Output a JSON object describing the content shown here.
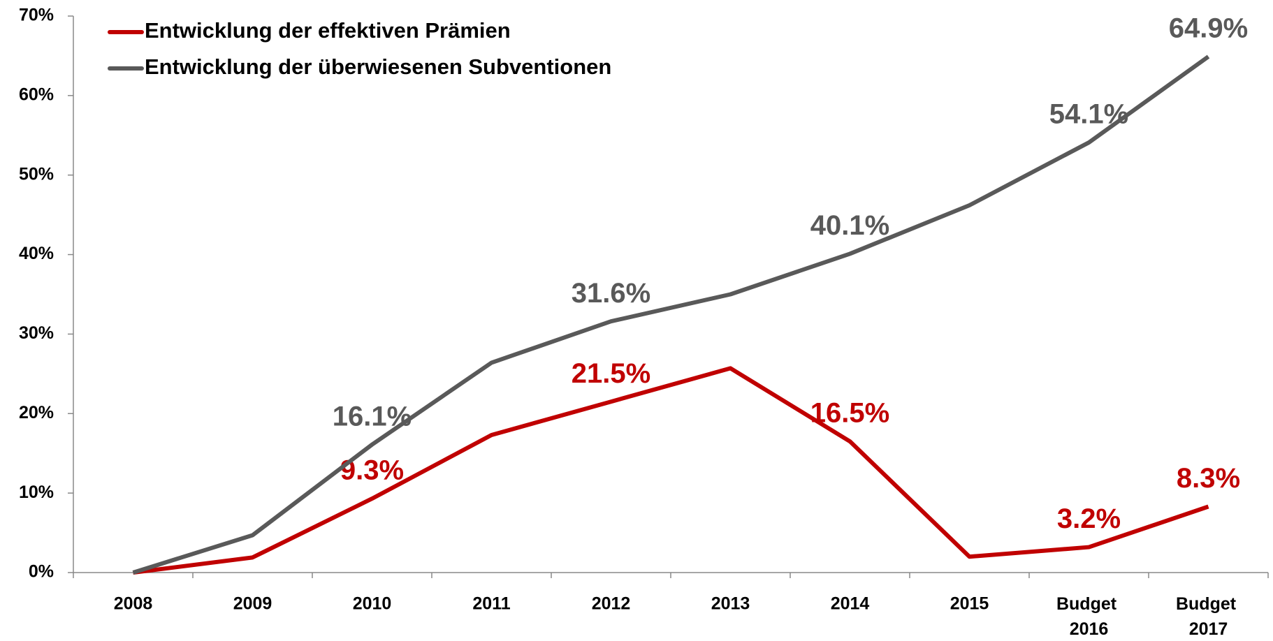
{
  "chart_data": {
    "type": "line",
    "categories": [
      "2008",
      "2009",
      "2010",
      "2011",
      "2012",
      "2013",
      "2014",
      "2015",
      "Budget 2016",
      "Budget 2017"
    ],
    "series": [
      {
        "name": "Entwicklung der effektiven Prämien",
        "color": "#c00000",
        "values": [
          0,
          1.9,
          9.3,
          17.3,
          21.5,
          25.7,
          16.5,
          2.0,
          3.2,
          8.3
        ],
        "value_labels": [
          null,
          null,
          "9.3%",
          null,
          "21.5%",
          null,
          "16.5%",
          null,
          "3.2%",
          "8.3%"
        ]
      },
      {
        "name": "Entwicklung der überwiesenen Subventionen",
        "color": "#595959",
        "values": [
          0,
          4.7,
          16.1,
          26.4,
          31.6,
          35.0,
          40.1,
          46.2,
          54.1,
          64.9
        ],
        "value_labels": [
          null,
          null,
          "16.1%",
          null,
          "31.6%",
          null,
          "40.1%",
          null,
          "54.1%",
          "64.9%"
        ]
      }
    ],
    "ylim": [
      0,
      70
    ],
    "yticks": [
      {
        "value": 0,
        "label": "0%"
      },
      {
        "value": 10,
        "label": "10%"
      },
      {
        "value": 20,
        "label": "20%"
      },
      {
        "value": 30,
        "label": "30%"
      },
      {
        "value": 40,
        "label": "40%"
      },
      {
        "value": 50,
        "label": "50%"
      },
      {
        "value": 60,
        "label": "60%"
      },
      {
        "value": 70,
        "label": "70%"
      }
    ],
    "legend": "upper left"
  }
}
